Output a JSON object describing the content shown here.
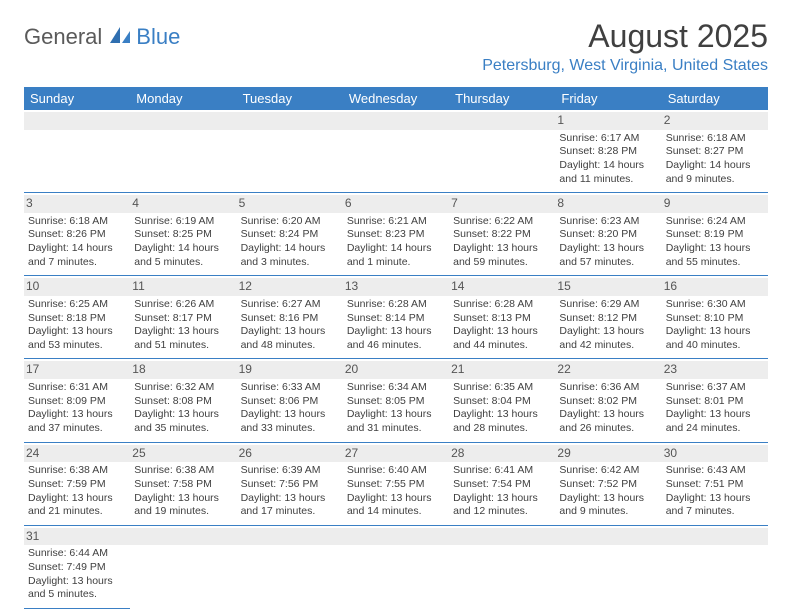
{
  "logo": {
    "part1": "General",
    "part2": "Blue"
  },
  "title": "August 2025",
  "location": "Petersburg, West Virginia, United States",
  "colors": {
    "header_bg": "#3a7fc4",
    "header_fg": "#ffffff",
    "accent": "#3a7fc4",
    "text": "#404040",
    "daynum_bg": "#ededed"
  },
  "day_headers": [
    "Sunday",
    "Monday",
    "Tuesday",
    "Wednesday",
    "Thursday",
    "Friday",
    "Saturday"
  ],
  "weeks": [
    [
      {
        "n": "",
        "lines": []
      },
      {
        "n": "",
        "lines": []
      },
      {
        "n": "",
        "lines": []
      },
      {
        "n": "",
        "lines": []
      },
      {
        "n": "",
        "lines": []
      },
      {
        "n": "1",
        "lines": [
          "Sunrise: 6:17 AM",
          "Sunset: 8:28 PM",
          "Daylight: 14 hours and 11 minutes."
        ]
      },
      {
        "n": "2",
        "lines": [
          "Sunrise: 6:18 AM",
          "Sunset: 8:27 PM",
          "Daylight: 14 hours and 9 minutes."
        ]
      }
    ],
    [
      {
        "n": "3",
        "lines": [
          "Sunrise: 6:18 AM",
          "Sunset: 8:26 PM",
          "Daylight: 14 hours and 7 minutes."
        ]
      },
      {
        "n": "4",
        "lines": [
          "Sunrise: 6:19 AM",
          "Sunset: 8:25 PM",
          "Daylight: 14 hours and 5 minutes."
        ]
      },
      {
        "n": "5",
        "lines": [
          "Sunrise: 6:20 AM",
          "Sunset: 8:24 PM",
          "Daylight: 14 hours and 3 minutes."
        ]
      },
      {
        "n": "6",
        "lines": [
          "Sunrise: 6:21 AM",
          "Sunset: 8:23 PM",
          "Daylight: 14 hours and 1 minute."
        ]
      },
      {
        "n": "7",
        "lines": [
          "Sunrise: 6:22 AM",
          "Sunset: 8:22 PM",
          "Daylight: 13 hours and 59 minutes."
        ]
      },
      {
        "n": "8",
        "lines": [
          "Sunrise: 6:23 AM",
          "Sunset: 8:20 PM",
          "Daylight: 13 hours and 57 minutes."
        ]
      },
      {
        "n": "9",
        "lines": [
          "Sunrise: 6:24 AM",
          "Sunset: 8:19 PM",
          "Daylight: 13 hours and 55 minutes."
        ]
      }
    ],
    [
      {
        "n": "10",
        "lines": [
          "Sunrise: 6:25 AM",
          "Sunset: 8:18 PM",
          "Daylight: 13 hours and 53 minutes."
        ]
      },
      {
        "n": "11",
        "lines": [
          "Sunrise: 6:26 AM",
          "Sunset: 8:17 PM",
          "Daylight: 13 hours and 51 minutes."
        ]
      },
      {
        "n": "12",
        "lines": [
          "Sunrise: 6:27 AM",
          "Sunset: 8:16 PM",
          "Daylight: 13 hours and 48 minutes."
        ]
      },
      {
        "n": "13",
        "lines": [
          "Sunrise: 6:28 AM",
          "Sunset: 8:14 PM",
          "Daylight: 13 hours and 46 minutes."
        ]
      },
      {
        "n": "14",
        "lines": [
          "Sunrise: 6:28 AM",
          "Sunset: 8:13 PM",
          "Daylight: 13 hours and 44 minutes."
        ]
      },
      {
        "n": "15",
        "lines": [
          "Sunrise: 6:29 AM",
          "Sunset: 8:12 PM",
          "Daylight: 13 hours and 42 minutes."
        ]
      },
      {
        "n": "16",
        "lines": [
          "Sunrise: 6:30 AM",
          "Sunset: 8:10 PM",
          "Daylight: 13 hours and 40 minutes."
        ]
      }
    ],
    [
      {
        "n": "17",
        "lines": [
          "Sunrise: 6:31 AM",
          "Sunset: 8:09 PM",
          "Daylight: 13 hours and 37 minutes."
        ]
      },
      {
        "n": "18",
        "lines": [
          "Sunrise: 6:32 AM",
          "Sunset: 8:08 PM",
          "Daylight: 13 hours and 35 minutes."
        ]
      },
      {
        "n": "19",
        "lines": [
          "Sunrise: 6:33 AM",
          "Sunset: 8:06 PM",
          "Daylight: 13 hours and 33 minutes."
        ]
      },
      {
        "n": "20",
        "lines": [
          "Sunrise: 6:34 AM",
          "Sunset: 8:05 PM",
          "Daylight: 13 hours and 31 minutes."
        ]
      },
      {
        "n": "21",
        "lines": [
          "Sunrise: 6:35 AM",
          "Sunset: 8:04 PM",
          "Daylight: 13 hours and 28 minutes."
        ]
      },
      {
        "n": "22",
        "lines": [
          "Sunrise: 6:36 AM",
          "Sunset: 8:02 PM",
          "Daylight: 13 hours and 26 minutes."
        ]
      },
      {
        "n": "23",
        "lines": [
          "Sunrise: 6:37 AM",
          "Sunset: 8:01 PM",
          "Daylight: 13 hours and 24 minutes."
        ]
      }
    ],
    [
      {
        "n": "24",
        "lines": [
          "Sunrise: 6:38 AM",
          "Sunset: 7:59 PM",
          "Daylight: 13 hours and 21 minutes."
        ]
      },
      {
        "n": "25",
        "lines": [
          "Sunrise: 6:38 AM",
          "Sunset: 7:58 PM",
          "Daylight: 13 hours and 19 minutes."
        ]
      },
      {
        "n": "26",
        "lines": [
          "Sunrise: 6:39 AM",
          "Sunset: 7:56 PM",
          "Daylight: 13 hours and 17 minutes."
        ]
      },
      {
        "n": "27",
        "lines": [
          "Sunrise: 6:40 AM",
          "Sunset: 7:55 PM",
          "Daylight: 13 hours and 14 minutes."
        ]
      },
      {
        "n": "28",
        "lines": [
          "Sunrise: 6:41 AM",
          "Sunset: 7:54 PM",
          "Daylight: 13 hours and 12 minutes."
        ]
      },
      {
        "n": "29",
        "lines": [
          "Sunrise: 6:42 AM",
          "Sunset: 7:52 PM",
          "Daylight: 13 hours and 9 minutes."
        ]
      },
      {
        "n": "30",
        "lines": [
          "Sunrise: 6:43 AM",
          "Sunset: 7:51 PM",
          "Daylight: 13 hours and 7 minutes."
        ]
      }
    ],
    [
      {
        "n": "31",
        "lines": [
          "Sunrise: 6:44 AM",
          "Sunset: 7:49 PM",
          "Daylight: 13 hours and 5 minutes."
        ]
      },
      {
        "n": "",
        "lines": []
      },
      {
        "n": "",
        "lines": []
      },
      {
        "n": "",
        "lines": []
      },
      {
        "n": "",
        "lines": []
      },
      {
        "n": "",
        "lines": []
      },
      {
        "n": "",
        "lines": []
      }
    ]
  ]
}
